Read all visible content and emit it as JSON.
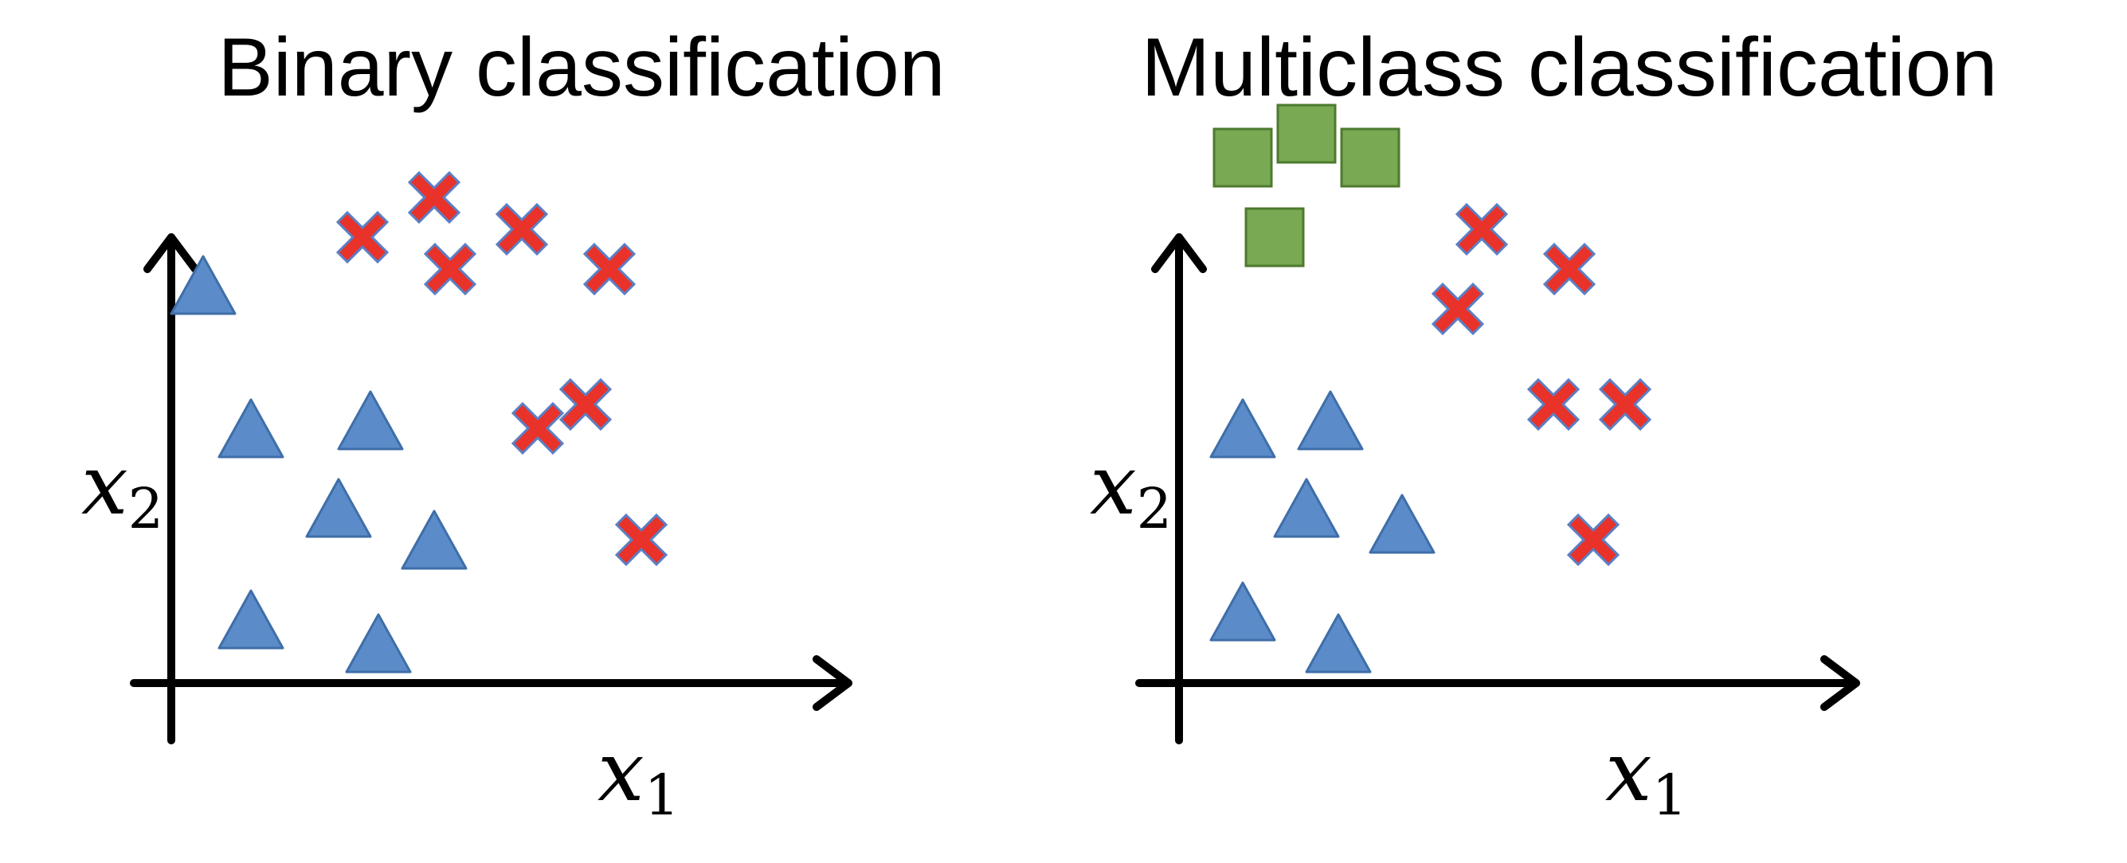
{
  "panels": [
    {
      "title": "Binary classification",
      "axes": {
        "x_label": "x",
        "x_sub": "1",
        "y_label": "x",
        "y_sub": "2"
      },
      "classes": [
        {
          "name": "triangle",
          "color": "#5b8cc9",
          "edge": "#3f6ea8",
          "points": [
            [
              0.4,
              5.0
            ],
            [
              1.0,
              3.2
            ],
            [
              2.5,
              3.3
            ],
            [
              2.1,
              2.2
            ],
            [
              3.3,
              1.8
            ],
            [
              1.0,
              0.8
            ],
            [
              2.6,
              0.5
            ]
          ]
        },
        {
          "name": "cross",
          "color": "#e8322a",
          "edge": "#5b7fc4",
          "points": [
            [
              2.4,
              5.6
            ],
            [
              3.3,
              6.1
            ],
            [
              3.5,
              5.2
            ],
            [
              4.4,
              5.7
            ],
            [
              5.5,
              5.2
            ],
            [
              4.6,
              3.2
            ],
            [
              5.2,
              3.5
            ],
            [
              5.9,
              1.8
            ]
          ]
        }
      ]
    },
    {
      "title": "Multiclass classification",
      "axes": {
        "x_label": "x",
        "x_sub": "1",
        "y_label": "x",
        "y_sub": "2"
      },
      "classes": [
        {
          "name": "square",
          "color": "#79a953",
          "edge": "#4d7a2e",
          "points": [
            [
              0.8,
              6.6
            ],
            [
              1.6,
              6.9
            ],
            [
              2.4,
              6.6
            ],
            [
              1.2,
              5.6
            ]
          ]
        },
        {
          "name": "triangle",
          "color": "#5b8cc9",
          "edge": "#3f6ea8",
          "points": [
            [
              0.8,
              3.2
            ],
            [
              1.9,
              3.3
            ],
            [
              1.6,
              2.2
            ],
            [
              2.8,
              2.0
            ],
            [
              0.8,
              0.9
            ],
            [
              2.0,
              0.5
            ]
          ]
        },
        {
          "name": "cross",
          "color": "#e8322a",
          "edge": "#5b7fc4",
          "points": [
            [
              3.8,
              5.7
            ],
            [
              3.5,
              4.7
            ],
            [
              4.9,
              5.2
            ],
            [
              4.7,
              3.5
            ],
            [
              5.6,
              3.5
            ],
            [
              5.2,
              1.8
            ]
          ]
        }
      ]
    }
  ]
}
